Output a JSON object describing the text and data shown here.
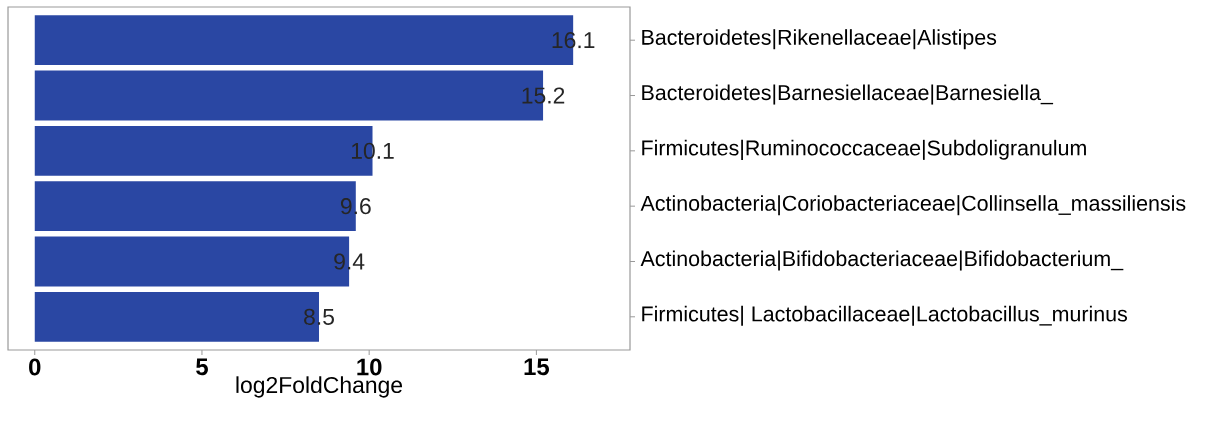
{
  "chart_data": {
    "type": "bar",
    "orientation": "horizontal",
    "xlabel": "log2FoldChange",
    "categories": [
      "Bacteroidetes|Rikenellaceae|Alistipes",
      "Bacteroidetes|Barnesiellaceae|Barnesiella_",
      "Firmicutes|Ruminococcaceae|Subdoligranulum",
      "Actinobacteria|Coriobacteriaceae|Collinsella_massiliensis",
      "Actinobacteria|Bifidobacteriaceae|Bifidobacterium_",
      "Firmicutes| Lactobacillaceae|Lactobacillus_murinus"
    ],
    "values": [
      16.1,
      15.2,
      10.1,
      9.6,
      9.4,
      8.5
    ],
    "color": "#2a47a3",
    "data_labels": true,
    "xlim": [
      -0.8,
      17.8
    ],
    "xticks": [
      0,
      5,
      10,
      15
    ],
    "grid": false
  }
}
